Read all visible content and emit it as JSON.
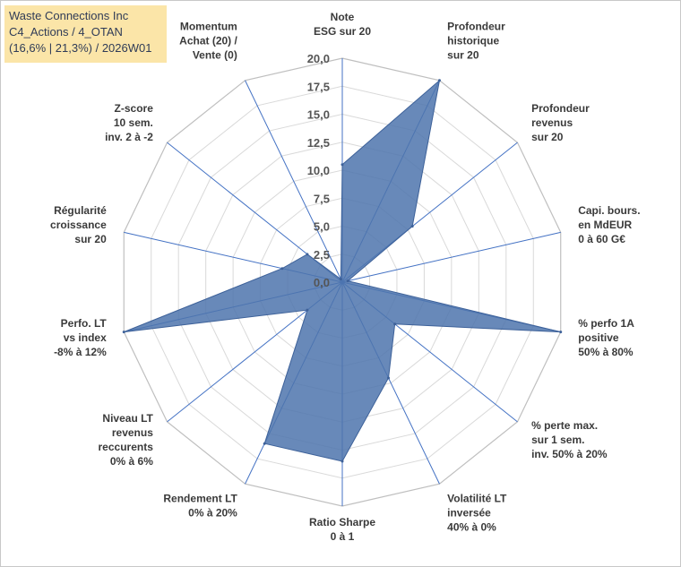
{
  "title": {
    "line1": "Waste Connections Inc",
    "line2": "C4_Actions / 4_OTAN",
    "line3": "(16,6% | 21,3%) / 2026W01"
  },
  "chart_data": {
    "type": "radar",
    "title": "Waste Connections Inc",
    "range": [
      0,
      20
    ],
    "ticks": [
      "0,0",
      "2,5",
      "5,0",
      "7,5",
      "10,0",
      "12,5",
      "15,0",
      "17,5",
      "20,0"
    ],
    "tick_values": [
      0,
      2.5,
      5,
      7.5,
      10,
      12.5,
      15,
      17.5,
      20
    ],
    "categories": [
      "Note ESG sur 20",
      "Profondeur historique sur 20",
      "Profondeur revenus sur 20",
      "Capi. bours. en MdEUR 0 à 60 G€",
      "% perfo 1A positive 50% à 80%",
      "% perte max. sur 1 sem. inv. 50% à 20%",
      "Volatilité LT inversée 40% à 0%",
      "Ratio Sharpe 0 à 1",
      "Rendement LT 0% à 20%",
      "Niveau LT revenus reccurents 0% à 6%",
      "Perfo. LT vs index -8% à 12%",
      "Régularité croissance sur 20",
      "Z-score 10 sem. inv. 2 à -2",
      "Momentum Achat (20) / Vente (0)"
    ],
    "axis_label_lines": [
      [
        "Note",
        "ESG sur 20"
      ],
      [
        "Profondeur",
        "historique",
        "sur 20"
      ],
      [
        "Profondeur",
        "revenus",
        "sur 20"
      ],
      [
        "Capi. bours.",
        "en MdEUR",
        "0 à 60 G€"
      ],
      [
        "% perfo 1A",
        "positive",
        "50% à 80%"
      ],
      [
        "% perte max.",
        "sur 1 sem.",
        "inv. 50% à 20%"
      ],
      [
        "Volatilité LT",
        "inversée",
        "40% à 0%"
      ],
      [
        "Ratio Sharpe",
        "0 à 1"
      ],
      [
        "Rendement LT",
        "0% à 20%"
      ],
      [
        "Niveau LT",
        "revenus",
        "reccurents",
        "0% à 6%"
      ],
      [
        "Perfo. LT",
        "vs index",
        "-8% à 12%"
      ],
      [
        "Régularité",
        "croissance",
        "sur 20"
      ],
      [
        "Z-score",
        "10 sem.",
        "inv. 2 à -2"
      ],
      [
        "Momentum",
        "Achat (20) /",
        "Vente (0)"
      ]
    ],
    "series": [
      {
        "name": "Waste Connections Inc",
        "values": [
          10.5,
          20,
          8,
          0.5,
          20,
          6,
          9.5,
          16,
          16,
          4,
          20,
          5.5,
          4,
          0.3
        ]
      }
    ],
    "colors": {
      "fill": "#4d74ad",
      "stroke": "#3d6199",
      "grid": "#d9d9d9",
      "axis": "#4472c4"
    }
  }
}
